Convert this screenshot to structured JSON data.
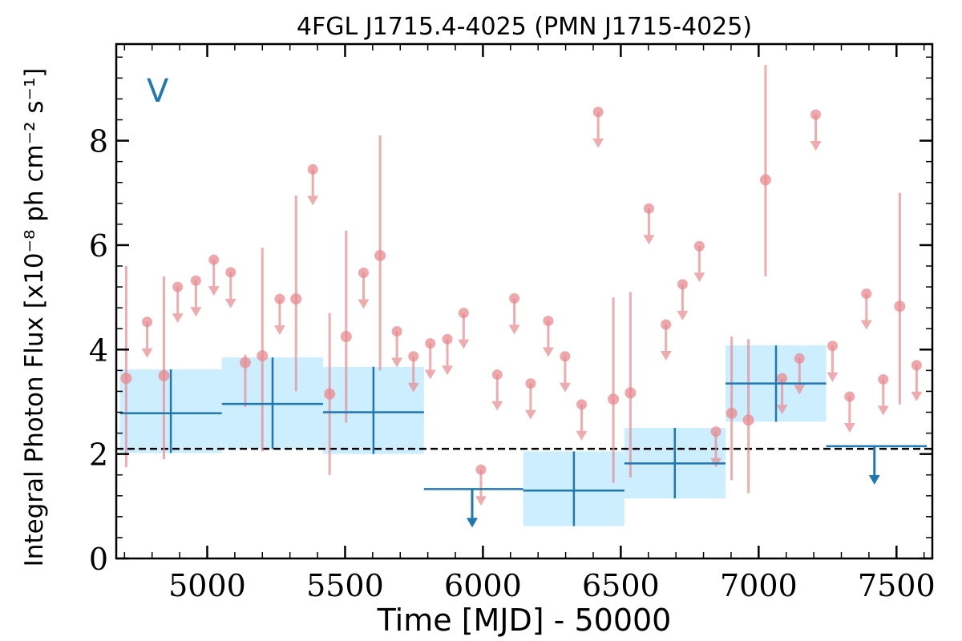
{
  "chart_data": {
    "type": "scatter",
    "title": "4FGL J1715.4-4025 (PMN J1715-4025)",
    "xlabel": "Time [MJD] - 50000",
    "ylabel": "Integral Photon Flux [x10⁻⁸ ph cm⁻² s⁻¹]",
    "corner_label": "V",
    "xlim": [
      4670,
      7630
    ],
    "ylim": [
      0,
      9.85
    ],
    "x_ticks": [
      5000,
      5500,
      6000,
      6500,
      7000,
      7500
    ],
    "y_ticks": [
      0,
      2,
      4,
      6,
      8
    ],
    "x_minor_step": 100,
    "y_minor_step": 0.4,
    "grid": false,
    "reference_line": {
      "y": 2.1,
      "style": "dashed",
      "color": "#000000"
    },
    "colors": {
      "short_bins": "#e88a8e",
      "long_bins": "#1f77b4",
      "long_bins_fill": "#cdeefe"
    },
    "series": [
      {
        "detections": [
          {
            "x": 4706,
            "y": 3.45,
            "yerr": [
              1.75,
              5.6
            ]
          },
          {
            "x": 4843,
            "y": 3.5,
            "yerr": [
              1.9,
              5.4
            ]
          },
          {
            "x": 5138,
            "y": 3.75,
            "yerr": [
              2.9,
              3.9
            ]
          },
          {
            "x": 5200,
            "y": 3.88,
            "yerr": [
              2.05,
              5.95
            ]
          },
          {
            "x": 5322,
            "y": 4.97,
            "yerr": [
              3.2,
              6.95
            ]
          },
          {
            "x": 5444,
            "y": 3.15,
            "yerr": [
              1.6,
              4.7
            ]
          },
          {
            "x": 5504,
            "y": 4.25,
            "yerr": [
              2.6,
              6.28
            ]
          },
          {
            "x": 5627,
            "y": 5.8,
            "yerr": [
              3.6,
              8.1
            ]
          },
          {
            "x": 6473,
            "y": 3.05,
            "yerr": [
              1.45,
              5.0
            ]
          },
          {
            "x": 6535,
            "y": 3.17,
            "yerr": [
              1.55,
              5.1
            ]
          },
          {
            "x": 6902,
            "y": 2.78,
            "yerr": [
              1.5,
              4.25
            ]
          },
          {
            "x": 6963,
            "y": 2.65,
            "yerr": [
              1.25,
              4.2
            ]
          },
          {
            "x": 7025,
            "y": 7.25,
            "yerr": [
              5.4,
              9.45
            ]
          },
          {
            "x": 7512,
            "y": 4.83,
            "yerr": [
              2.95,
              7.0
            ]
          }
        ],
        "upper_limits": [
          {
            "x": 4782,
            "y": 4.53
          },
          {
            "x": 4893,
            "y": 5.2
          },
          {
            "x": 4959,
            "y": 5.32
          },
          {
            "x": 5024,
            "y": 5.72
          },
          {
            "x": 5085,
            "y": 5.48
          },
          {
            "x": 5263,
            "y": 4.97
          },
          {
            "x": 5383,
            "y": 7.45
          },
          {
            "x": 5567,
            "y": 5.47
          },
          {
            "x": 5688,
            "y": 4.35
          },
          {
            "x": 5748,
            "y": 3.87
          },
          {
            "x": 5809,
            "y": 4.12
          },
          {
            "x": 5871,
            "y": 4.2
          },
          {
            "x": 5930,
            "y": 4.7
          },
          {
            "x": 5993,
            "y": 1.7
          },
          {
            "x": 6052,
            "y": 3.52
          },
          {
            "x": 6114,
            "y": 4.98
          },
          {
            "x": 6173,
            "y": 3.35
          },
          {
            "x": 6237,
            "y": 4.55
          },
          {
            "x": 6298,
            "y": 3.87
          },
          {
            "x": 6358,
            "y": 2.95
          },
          {
            "x": 6418,
            "y": 8.55
          },
          {
            "x": 6602,
            "y": 6.7
          },
          {
            "x": 6664,
            "y": 4.48
          },
          {
            "x": 6724,
            "y": 5.25
          },
          {
            "x": 6785,
            "y": 5.98
          },
          {
            "x": 6845,
            "y": 2.43
          },
          {
            "x": 7085,
            "y": 3.45
          },
          {
            "x": 7148,
            "y": 3.83
          },
          {
            "x": 7207,
            "y": 8.5
          },
          {
            "x": 7268,
            "y": 4.07
          },
          {
            "x": 7330,
            "y": 3.1
          },
          {
            "x": 7391,
            "y": 5.07
          },
          {
            "x": 7452,
            "y": 3.43
          },
          {
            "x": 7573,
            "y": 3.7
          }
        ]
      },
      {
        "detections": [
          {
            "x": 4868,
            "xerr": [
              4683,
              5053
            ],
            "y": 2.78,
            "yerr": [
              2.02,
              3.62
            ]
          },
          {
            "x": 5237,
            "xerr": [
              5053,
              5420
            ],
            "y": 2.96,
            "yerr": [
              2.1,
              3.85
            ]
          },
          {
            "x": 5603,
            "xerr": [
              5420,
              5786
            ],
            "y": 2.8,
            "yerr": [
              2.0,
              3.67
            ]
          },
          {
            "x": 6330,
            "xerr": [
              6146,
              6513
            ],
            "y": 1.3,
            "yerr": [
              0.62,
              2.05
            ]
          },
          {
            "x": 6696,
            "xerr": [
              6513,
              6880
            ],
            "y": 1.82,
            "yerr": [
              1.15,
              2.5
            ]
          },
          {
            "x": 7063,
            "xerr": [
              6880,
              7245
            ],
            "y": 3.35,
            "yerr": [
              2.62,
              4.08
            ]
          }
        ],
        "upper_limits": [
          {
            "x": 5961,
            "xerr": [
              5786,
              6146
            ],
            "y": 1.33
          },
          {
            "x": 7420,
            "xerr": [
              7245,
              7610
            ],
            "y": 2.15
          }
        ]
      }
    ]
  }
}
